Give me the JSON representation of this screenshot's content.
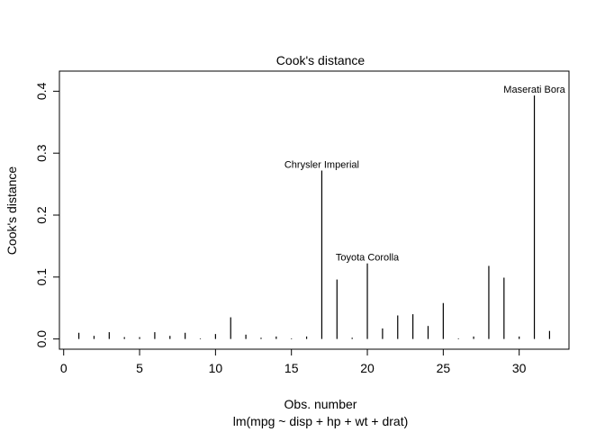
{
  "chart_data": {
    "type": "bar",
    "title": "Cook's distance",
    "xlabel": "Obs. number",
    "subtitle": "lm(mpg ~ disp + hp + wt + drat)",
    "ylabel": "Cook's distance",
    "xlim": [
      -0.28,
      33.28
    ],
    "ylim": [
      -0.0165,
      0.4325
    ],
    "xticks": [
      0,
      5,
      10,
      15,
      20,
      25,
      30
    ],
    "yticks": [
      0.0,
      0.1,
      0.2,
      0.3,
      0.4
    ],
    "ytick_labels": [
      "0.0",
      "0.1",
      "0.2",
      "0.3",
      "0.4"
    ],
    "x": [
      1,
      2,
      3,
      4,
      5,
      6,
      7,
      8,
      9,
      10,
      11,
      12,
      13,
      14,
      15,
      16,
      17,
      18,
      19,
      20,
      21,
      22,
      23,
      24,
      25,
      26,
      27,
      28,
      29,
      30,
      31,
      32
    ],
    "values": [
      0.01,
      0.005,
      0.011,
      0.003,
      0.003,
      0.011,
      0.005,
      0.01,
      0.001,
      0.008,
      0.035,
      0.007,
      0.002,
      0.004,
      0.001,
      0.004,
      0.272,
      0.096,
      0.002,
      0.122,
      0.017,
      0.038,
      0.04,
      0.021,
      0.058,
      0.001,
      0.004,
      0.118,
      0.099,
      0.004,
      0.393,
      0.013
    ],
    "annotations": [
      {
        "x": 17,
        "label": "Chrysler Imperial"
      },
      {
        "x": 20,
        "label": "Toyota Corolla"
      },
      {
        "x": 31,
        "label": "Maserati Bora"
      }
    ],
    "grid": false,
    "legend": "none"
  }
}
